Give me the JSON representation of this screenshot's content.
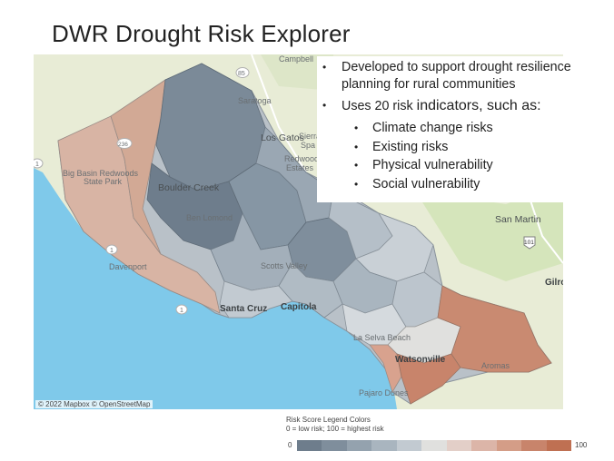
{
  "title": "DWR Drought Risk Explorer",
  "bullets": [
    {
      "text": "Developed to support drought resilience planning for rural communities"
    },
    {
      "text_prefix": "Uses 20 risk ",
      "text_emph": "indicators",
      "text_suffix": ", such as:",
      "sub": [
        "Climate change risks",
        "Existing risks",
        "Physical vulnerability",
        "Social vulnerability"
      ]
    }
  ],
  "map": {
    "attribution": "© 2022 Mapbox © OpenStreetMap",
    "place_labels": {
      "campbell": "Campbell",
      "saratoga": "Saratoga",
      "los_gatos": "Los Gatos",
      "sierra": "Sierra",
      "spa": "Spa",
      "redwood": "Redwood",
      "estates": "Estates",
      "boulder_creek": "Boulder Creek",
      "big_basin": "Big Basin Redwoods",
      "state_park": "State Park",
      "ben_lomond": "Ben Lomond",
      "scotts_valley": "Scotts Valley",
      "san_martin": "San Martin",
      "gilroy": "Gilro",
      "davenport": "Davenport",
      "santa_cruz": "Santa Cruz",
      "capitola": "Capitola",
      "la_selva_beach": "La Selva Beach",
      "watsonville": "Watsonville",
      "aromas": "Aromas",
      "pajaro_dunes": "Pajaro Dunes",
      "shield_85": "85",
      "shield_236": "236",
      "shield_1": "1",
      "shield_101": "101"
    },
    "colors": {
      "ocean": "#7fc9ea",
      "land": "#e8ecd6",
      "park": "#cfe3b4",
      "road": "#ffffff",
      "water_line": "#a8d4ee"
    }
  },
  "legend": {
    "title": "Risk Score Legend Colors",
    "subtitle": "0 = low risk; 100 = highest risk",
    "min_label": "0",
    "max_label": "100",
    "colors": [
      "#6e7d8c",
      "#7f8e9c",
      "#94a2ae",
      "#a9b5bf",
      "#c2cad1",
      "#e0e0de",
      "#e3cfc8",
      "#dcb5a8",
      "#d49d87",
      "#c8846b",
      "#bf7052"
    ]
  }
}
